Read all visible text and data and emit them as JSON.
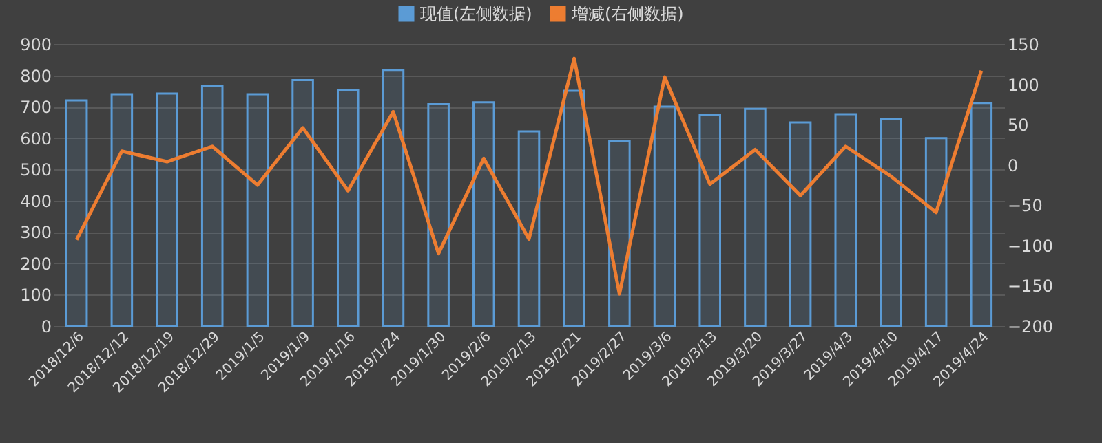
{
  "chart_data": {
    "type": "bar",
    "categories": [
      "2018/12/6",
      "2018/12/12",
      "2018/12/19",
      "2018/12/29",
      "2019/1/5",
      "2019/1/9",
      "2019/1/16",
      "2019/1/24",
      "2019/1/30",
      "2019/2/6",
      "2019/2/13",
      "2019/2/21",
      "2019/2/27",
      "2019/3/6",
      "2019/3/13",
      "2019/3/20",
      "2019/3/27",
      "2019/4/3",
      "2019/4/10",
      "2019/4/17",
      "2019/4/24"
    ],
    "series": [
      {
        "name": "现值(左侧数据)",
        "color": "#5b9bd5",
        "values": [
          720,
          740,
          742,
          765,
          740,
          785,
          752,
          817,
          708,
          714,
          621,
          751,
          590,
          700,
          675,
          693,
          650,
          676,
          660,
          600,
          712
        ]
      },
      {
        "name": "增减(右侧数据)",
        "type": "line",
        "axis": "y2",
        "color": "#ed7d31",
        "values": [
          -93,
          17,
          4,
          23,
          -25,
          46,
          -32,
          66,
          -110,
          8,
          -92,
          132,
          -160,
          109,
          -24,
          19,
          -38,
          23,
          -14,
          -59,
          117
        ]
      }
    ],
    "ylim": [
      0,
      900
    ],
    "yticks": [
      0,
      100,
      200,
      300,
      400,
      500,
      600,
      700,
      800,
      900
    ],
    "y2lim": [
      -200,
      150
    ],
    "y2ticks": [
      -200,
      -150,
      -100,
      -50,
      0,
      50,
      100,
      150
    ],
    "grid": "y",
    "legend": "top",
    "marker": "none",
    "line_style": "solid"
  }
}
